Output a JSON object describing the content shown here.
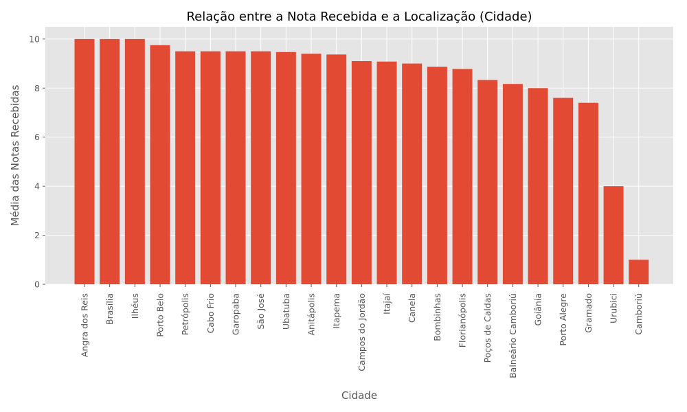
{
  "chart_data": {
    "type": "bar",
    "title": "Relação entre a Nota Recebida e a Localização (Cidade)",
    "xlabel": "Cidade",
    "ylabel": "Média das Notas Recebidas",
    "ylim": [
      0,
      10.5
    ],
    "yticks": [
      0,
      2,
      4,
      6,
      8,
      10
    ],
    "grid": true,
    "categories": [
      "Angra dos Reis",
      "Brasília",
      "Ilhéus",
      "Porto Belo",
      "Petrópolis",
      "Cabo Frio",
      "Garopaba",
      "São José",
      "Ubatuba",
      "Anitápolis",
      "Itapema",
      "Campos do Jordão",
      "Itajaí",
      "Canela",
      "Bombinhas",
      "Florianópolis",
      "Poços de Caldas",
      "Balneário Camboriú",
      "Goiânia",
      "Porto Alegre",
      "Gramado",
      "Urubici",
      "Camboriú"
    ],
    "values": [
      10.0,
      10.0,
      10.0,
      9.75,
      9.5,
      9.5,
      9.5,
      9.5,
      9.47,
      9.4,
      9.37,
      9.1,
      9.08,
      9.0,
      8.87,
      8.78,
      8.33,
      8.17,
      8.0,
      7.6,
      7.4,
      4.0,
      1.0
    ],
    "colors": {
      "bar": "#E24A33",
      "plot_bg": "#E5E5E5",
      "grid": "#FFFFFF"
    }
  }
}
